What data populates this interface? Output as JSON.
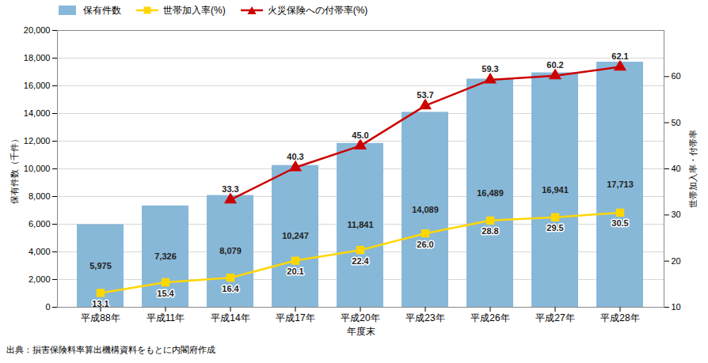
{
  "chart_data": {
    "type": "bar",
    "xlabel": "年度末",
    "ylabel": "保有件数（千件）",
    "y2label": "世帯加入率・付帯率",
    "annotations": [
      "出典：損害保険料率算出機構資料をもとに内閣府作成"
    ],
    "categories": [
      "平成88年",
      "平成11年",
      "平成14年",
      "平成17年",
      "平成20年",
      "平成23年",
      "平成26年",
      "平成27年",
      "平成28年"
    ],
    "series": [
      {
        "name": "保有件数",
        "type": "bar",
        "color": "#88B8D8",
        "values": [
          5975,
          7326,
          8079,
          10247,
          11841,
          14089,
          16489,
          16941,
          17713
        ],
        "value_labels": [
          "5,975",
          "7,326",
          "8,079",
          "10,247",
          "11,841",
          "14,089",
          "16,489",
          "16,941",
          "17,713"
        ]
      },
      {
        "name": "世帯加入率(%)",
        "type": "line",
        "axis": "y2",
        "color": "#FFD700",
        "marker": "square",
        "values": [
          13.1,
          15.4,
          16.4,
          20.1,
          22.4,
          26.0,
          28.8,
          29.5,
          30.5
        ],
        "value_labels": [
          "13.1",
          "15.4",
          "16.4",
          "20.1",
          "22.4",
          "26.0",
          "28.8",
          "29.5",
          "30.5"
        ]
      },
      {
        "name": "火災保険への付帯率(%)",
        "type": "line",
        "axis": "y2",
        "color": "#CC0000",
        "marker": "triangle",
        "values": [
          null,
          null,
          33.3,
          40.3,
          45.0,
          53.7,
          59.3,
          60.2,
          62.1
        ],
        "value_labels": [
          null,
          null,
          "33.3",
          "40.3",
          "45.0",
          "53.7",
          "59.3",
          "60.2",
          "62.1"
        ]
      }
    ],
    "ylim": [
      0,
      20000
    ],
    "yticks": [
      0,
      {
        "value": 2000,
        "label": "2,000"
      },
      {
        "value": 4000,
        "label": "4,000"
      },
      {
        "value": 6000,
        "label": "6,000"
      },
      {
        "value": 8000,
        "label": "8,000"
      },
      {
        "value": 10000,
        "label": "10,000"
      },
      {
        "value": 12000,
        "label": "12,000"
      },
      {
        "value": 14000,
        "label": "14,000"
      },
      {
        "value": 16000,
        "label": "16,000"
      },
      {
        "value": 18000,
        "label": "18,000"
      },
      {
        "value": 20000,
        "label": "20,000"
      }
    ],
    "y2lim": [
      10,
      70
    ],
    "y2ticks": [
      10,
      20,
      30,
      40,
      50,
      60
    ],
    "grid": true,
    "legend": "upper left",
    "data_labels": true
  }
}
